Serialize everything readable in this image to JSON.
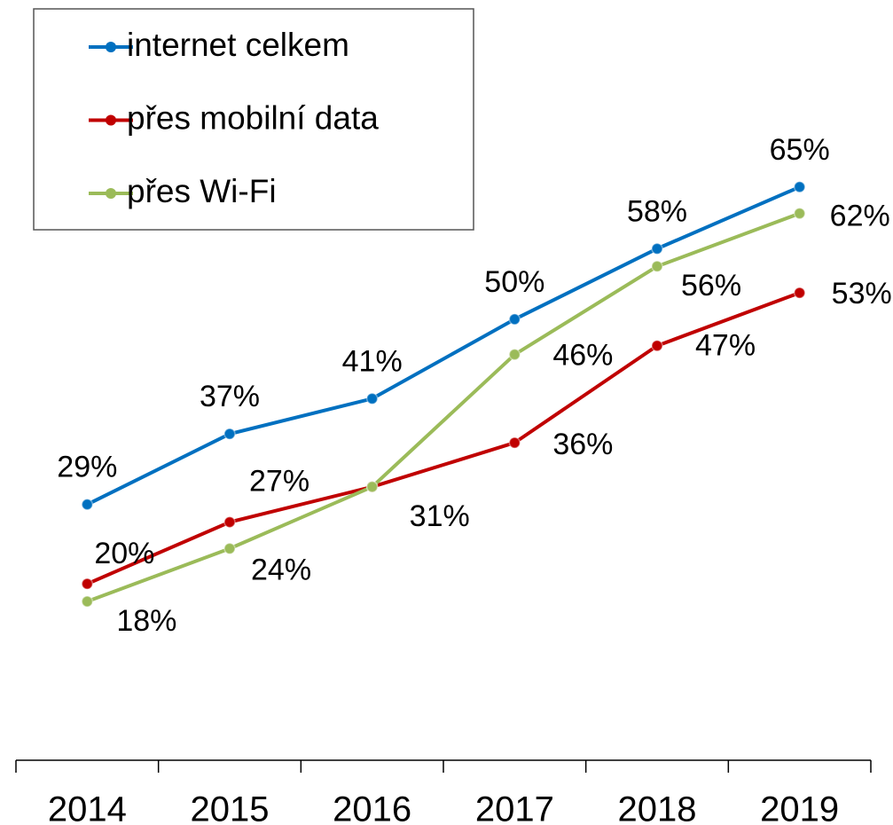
{
  "chart_data": {
    "type": "line",
    "categories": [
      "2014",
      "2015",
      "2016",
      "2017",
      "2018",
      "2019"
    ],
    "series": [
      {
        "name": "internet celkem",
        "color": "#0070c0",
        "values": [
          29,
          37,
          41,
          50,
          58,
          65
        ],
        "value_labels": [
          "29%",
          "37%",
          "41%",
          "50%",
          "58%",
          "65%"
        ]
      },
      {
        "name": "přes mobilní data",
        "color": "#c00000",
        "values": [
          20,
          27,
          31,
          36,
          47,
          53
        ],
        "value_labels": [
          "20%",
          "27%",
          "31%",
          "36%",
          "47%",
          "53%"
        ]
      },
      {
        "name": "přes Wi-Fi",
        "color": "#9bbb59",
        "values": [
          18,
          24,
          31,
          46,
          56,
          62
        ],
        "value_labels": [
          "18%",
          "24%",
          null,
          "46%",
          "56%",
          "62%"
        ]
      }
    ],
    "ylim": [
      0,
      86
    ],
    "legend": "upper left"
  }
}
